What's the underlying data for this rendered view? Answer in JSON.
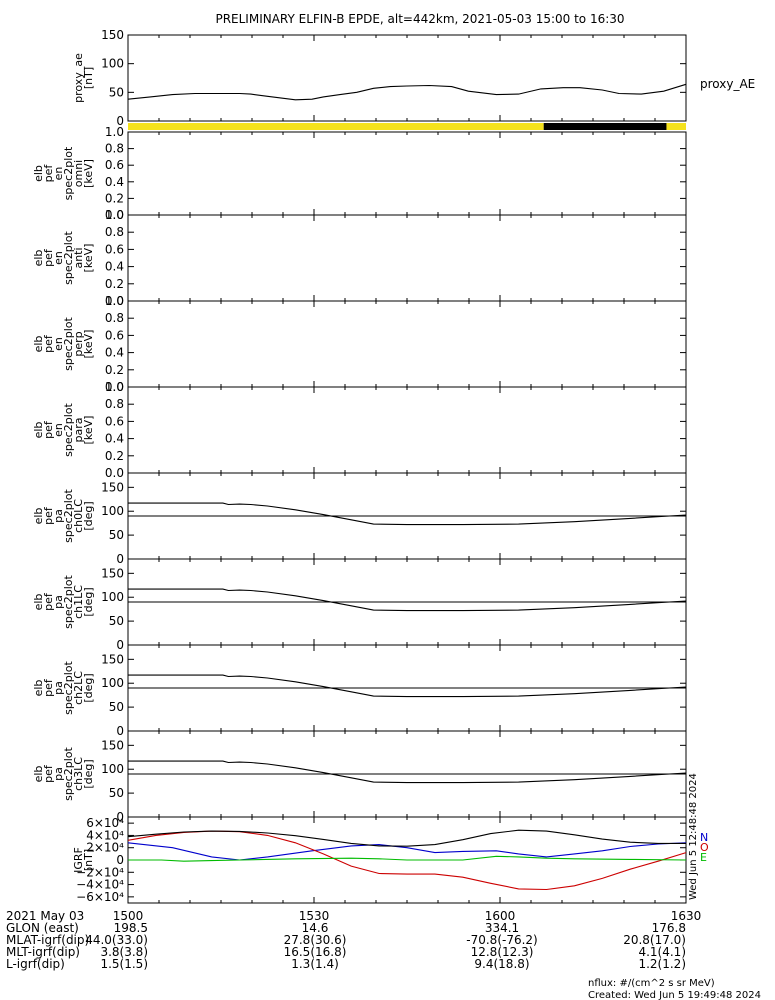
{
  "title": "PRELIMINARY ELFIN-B EPDE, alt=442km, 2021-05-03 15:00 to 16:30",
  "side_label": "proxy_AE",
  "created_vertical": "Wed Jun  5 12:48:48 2024",
  "legend_letters": [
    {
      "text": "N",
      "color": "#0000cc"
    },
    {
      "text": "O",
      "color": "#cc0000"
    },
    {
      "text": "E",
      "color": "#00bb00"
    }
  ],
  "chart_data": [
    {
      "id": "proxy_ae",
      "type": "line",
      "ylabel_lines": [
        "proxy_ae",
        "[nT]"
      ],
      "ylim": [
        0,
        150
      ],
      "yticks": [
        "150",
        "100",
        "50",
        "0"
      ],
      "yvals": [
        150,
        100,
        50,
        0
      ],
      "series": [
        {
          "color": "#000000",
          "x": [
            0,
            0.04,
            0.08,
            0.12,
            0.16,
            0.2,
            0.22,
            0.25,
            0.3,
            0.33,
            0.35,
            0.38,
            0.41,
            0.44,
            0.47,
            0.5,
            0.54,
            0.58,
            0.61,
            0.66,
            0.7,
            0.74,
            0.78,
            0.81,
            0.85,
            0.88,
            0.92,
            0.96,
            1.0
          ],
          "y": [
            38,
            42,
            46,
            48,
            48,
            48,
            47,
            43,
            37,
            38,
            42,
            46,
            50,
            57,
            60,
            61,
            62,
            60,
            52,
            46,
            47,
            56,
            58,
            58,
            54,
            48,
            47,
            52,
            64
          ]
        }
      ]
    },
    {
      "id": "flag_bar",
      "type": "bar",
      "segments": [
        {
          "x0": 0.0,
          "x1": 0.745,
          "value": "flag-on",
          "color": "#f5e21d"
        },
        {
          "x0": 0.745,
          "x1": 0.965,
          "value": "flag-off",
          "color": "#000000"
        },
        {
          "x0": 0.965,
          "x1": 1.0,
          "value": "flag-on",
          "color": "#f5e21d"
        }
      ]
    },
    {
      "id": "en_omni",
      "type": "line",
      "ylabel_lines": [
        "elb",
        "pef",
        "en",
        "spec2plot",
        "omni",
        "[keV]"
      ],
      "ylim": [
        0,
        1
      ],
      "yticks": [
        "1.0",
        "0.8",
        "0.6",
        "0.4",
        "0.2",
        "0.0"
      ],
      "yvals": [
        1.0,
        0.8,
        0.6,
        0.4,
        0.2,
        0.0
      ],
      "series": []
    },
    {
      "id": "en_anti",
      "type": "line",
      "ylabel_lines": [
        "elb",
        "pef",
        "en",
        "spec2plot",
        "anti",
        "[keV]"
      ],
      "ylim": [
        0,
        1
      ],
      "yticks": [
        "1.0",
        "0.8",
        "0.6",
        "0.4",
        "0.2",
        "0.0"
      ],
      "yvals": [
        1.0,
        0.8,
        0.6,
        0.4,
        0.2,
        0.0
      ],
      "series": []
    },
    {
      "id": "en_perp",
      "type": "line",
      "ylabel_lines": [
        "elb",
        "pef",
        "en",
        "spec2plot",
        "perp",
        "[keV]"
      ],
      "ylim": [
        0,
        1
      ],
      "yticks": [
        "1.0",
        "0.8",
        "0.6",
        "0.4",
        "0.2",
        "0.0"
      ],
      "yvals": [
        1.0,
        0.8,
        0.6,
        0.4,
        0.2,
        0.0
      ],
      "series": []
    },
    {
      "id": "en_para",
      "type": "line",
      "ylabel_lines": [
        "elb",
        "pef",
        "en",
        "spec2plot",
        "para",
        "[keV]"
      ],
      "ylim": [
        0,
        1
      ],
      "yticks": [
        "1.0",
        "0.8",
        "0.6",
        "0.4",
        "0.2",
        "0.0"
      ],
      "yvals": [
        1.0,
        0.8,
        0.6,
        0.4,
        0.2,
        0.0
      ],
      "series": []
    },
    {
      "id": "pa_ch0",
      "type": "line",
      "ylabel_lines": [
        "elb",
        "pef",
        "pa",
        "spec2plot",
        "ch0LC",
        "[deg]"
      ],
      "ylim": [
        0,
        180
      ],
      "yticks": [
        "150",
        "100",
        "50",
        "0"
      ],
      "yvals": [
        150,
        100,
        50,
        0
      ],
      "series": [
        {
          "color": "#000000",
          "x": [
            0,
            0.17,
            0.18,
            0.2,
            0.22,
            0.25,
            0.3,
            0.35,
            0.4,
            0.44,
            0.5,
            0.6,
            0.7,
            0.8,
            0.9,
            1.0
          ],
          "y": [
            117,
            117,
            114,
            115,
            114,
            111,
            103,
            93,
            82,
            73,
            72,
            72,
            73,
            78,
            85,
            92
          ]
        },
        {
          "color": "#000000",
          "x": [
            0,
            1
          ],
          "y": [
            90,
            90
          ]
        }
      ]
    },
    {
      "id": "pa_ch1",
      "type": "line",
      "ylabel_lines": [
        "elb",
        "pef",
        "pa",
        "spec2plot",
        "ch1LC",
        "[deg]"
      ],
      "ylim": [
        0,
        180
      ],
      "yticks": [
        "150",
        "100",
        "50",
        "0"
      ],
      "yvals": [
        150,
        100,
        50,
        0
      ],
      "series": [
        {
          "color": "#000000",
          "x": [
            0,
            0.17,
            0.18,
            0.2,
            0.22,
            0.25,
            0.3,
            0.35,
            0.4,
            0.44,
            0.5,
            0.6,
            0.7,
            0.8,
            0.9,
            1.0
          ],
          "y": [
            117,
            117,
            114,
            115,
            114,
            111,
            103,
            93,
            82,
            73,
            72,
            72,
            73,
            78,
            85,
            92
          ]
        },
        {
          "color": "#000000",
          "x": [
            0,
            1
          ],
          "y": [
            90,
            90
          ]
        }
      ]
    },
    {
      "id": "pa_ch2",
      "type": "line",
      "ylabel_lines": [
        "elb",
        "pef",
        "pa",
        "spec2plot",
        "ch2LC",
        "[deg]"
      ],
      "ylim": [
        0,
        180
      ],
      "yticks": [
        "150",
        "100",
        "50",
        "0"
      ],
      "yvals": [
        150,
        100,
        50,
        0
      ],
      "series": [
        {
          "color": "#000000",
          "x": [
            0,
            0.17,
            0.18,
            0.2,
            0.22,
            0.25,
            0.3,
            0.35,
            0.4,
            0.44,
            0.5,
            0.6,
            0.7,
            0.8,
            0.9,
            1.0
          ],
          "y": [
            117,
            117,
            114,
            115,
            114,
            111,
            103,
            93,
            82,
            73,
            72,
            72,
            73,
            78,
            85,
            92
          ]
        },
        {
          "color": "#000000",
          "x": [
            0,
            1
          ],
          "y": [
            90,
            90
          ]
        }
      ]
    },
    {
      "id": "pa_ch3",
      "type": "line",
      "ylabel_lines": [
        "elb",
        "pef",
        "pa",
        "spec2plot",
        "ch3LC",
        "[deg]"
      ],
      "ylim": [
        0,
        180
      ],
      "yticks": [
        "150",
        "100",
        "50",
        "0"
      ],
      "yvals": [
        150,
        100,
        50,
        0
      ],
      "series": [
        {
          "color": "#000000",
          "x": [
            0,
            0.17,
            0.18,
            0.2,
            0.22,
            0.25,
            0.3,
            0.35,
            0.4,
            0.44,
            0.5,
            0.6,
            0.7,
            0.8,
            0.9,
            1.0
          ],
          "y": [
            117,
            117,
            114,
            115,
            114,
            111,
            103,
            93,
            82,
            73,
            72,
            72,
            73,
            78,
            85,
            92
          ]
        },
        {
          "color": "#000000",
          "x": [
            0,
            1
          ],
          "y": [
            90,
            90
          ]
        }
      ]
    },
    {
      "id": "igrf",
      "type": "line",
      "ylabel_lines": [
        "IGRF",
        "[nT]"
      ],
      "ylim": [
        -70000,
        70000
      ],
      "yticks": [
        "6×10⁴",
        "4×10⁴",
        "2×10⁴",
        "0",
        "−2×10⁴",
        "−4×10⁴",
        "−6×10⁴"
      ],
      "yvals": [
        60000,
        40000,
        20000,
        0,
        -20000,
        -40000,
        -60000
      ],
      "series": [
        {
          "name": "N",
          "color": "#0000cc",
          "x": [
            0,
            0.08,
            0.15,
            0.2,
            0.25,
            0.33,
            0.4,
            0.45,
            0.5,
            0.55,
            0.6,
            0.66,
            0.7,
            0.75,
            0.8,
            0.85,
            0.9,
            0.95,
            1.0
          ],
          "y": [
            28000,
            20000,
            5000,
            0,
            5000,
            15000,
            23000,
            25000,
            20000,
            12000,
            14000,
            15000,
            10000,
            5000,
            10000,
            15000,
            22000,
            26000,
            28000
          ]
        },
        {
          "name": "O",
          "color": "#cc0000",
          "x": [
            0,
            0.05,
            0.1,
            0.15,
            0.2,
            0.25,
            0.3,
            0.35,
            0.4,
            0.45,
            0.5,
            0.55,
            0.6,
            0.65,
            0.7,
            0.75,
            0.8,
            0.85,
            0.9,
            0.95,
            1.0
          ],
          "y": [
            32000,
            40000,
            45000,
            47000,
            46000,
            40000,
            28000,
            10000,
            -10000,
            -22000,
            -23000,
            -23000,
            -28000,
            -38000,
            -47000,
            -48000,
            -42000,
            -30000,
            -15000,
            -2000,
            12000
          ]
        },
        {
          "name": "",
          "color": "#000000",
          "x": [
            0,
            0.05,
            0.1,
            0.15,
            0.2,
            0.25,
            0.3,
            0.35,
            0.4,
            0.45,
            0.5,
            0.55,
            0.6,
            0.65,
            0.7,
            0.75,
            0.8,
            0.85,
            0.9,
            0.95,
            1.0
          ],
          "y": [
            38000,
            42000,
            45500,
            47000,
            46500,
            44000,
            39500,
            33500,
            27000,
            23000,
            22500,
            25000,
            33000,
            43000,
            48500,
            47000,
            41000,
            34000,
            29000,
            27000,
            27000
          ]
        },
        {
          "name": "E",
          "color": "#00bb00",
          "x": [
            0,
            0.06,
            0.1,
            0.15,
            0.2,
            0.3,
            0.4,
            0.45,
            0.5,
            0.6,
            0.66,
            0.7,
            0.75,
            0.8,
            0.9,
            1.0
          ],
          "y": [
            0,
            0,
            -2000,
            -1000,
            0,
            2000,
            3000,
            2000,
            0,
            0,
            6000,
            5000,
            3000,
            2000,
            1000,
            0
          ]
        }
      ]
    }
  ],
  "x_axis": {
    "ticks": [
      {
        "x": 0.0,
        "label": "1500"
      },
      {
        "x": 0.3333,
        "label": "1530"
      },
      {
        "x": 0.6667,
        "label": "1600"
      },
      {
        "x": 1.0,
        "label": "1630"
      }
    ]
  },
  "footer_rows": [
    {
      "label": "2021 May 03",
      "values": [
        "1500",
        "1530",
        "1600",
        "1630"
      ]
    },
    {
      "label": "GLON (east)",
      "values": [
        "198.5",
        "14.6",
        "334.1",
        "176.8"
      ]
    },
    {
      "label": "MLAT-igrf(dip)",
      "values": [
        "44.0(33.0)",
        "27.8(30.6)",
        "-70.8(-76.2)",
        "20.8(17.0)"
      ]
    },
    {
      "label": "MLT-igrf(dip)",
      "values": [
        "3.8(3.8)",
        "16.5(16.8)",
        "12.8(12.3)",
        "4.1(4.1)"
      ]
    },
    {
      "label": "L-igrf(dip)",
      "values": [
        "1.5(1.5)",
        "1.3(1.4)",
        "9.4(18.8)",
        "1.2(1.2)"
      ]
    }
  ],
  "footnote": "nflux: #/(cm^2 s sr MeV)",
  "created": "Created: Wed Jun  5 19:49:48 2024"
}
